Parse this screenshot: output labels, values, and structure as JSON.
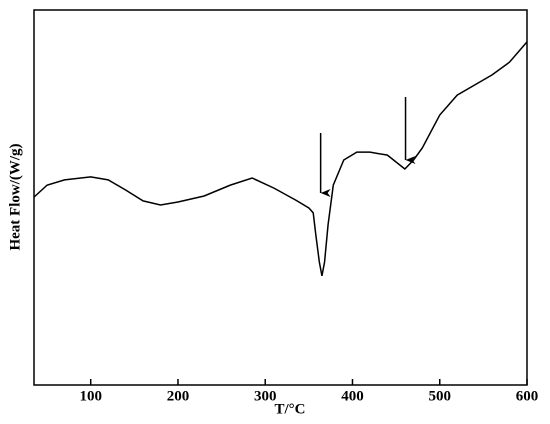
{
  "chart_data": {
    "type": "line",
    "x_label": "T/°C",
    "y_label": "Heat Flow/(W/g)",
    "x": [
      35,
      50,
      70,
      100,
      120,
      140,
      160,
      180,
      200,
      230,
      260,
      285,
      310,
      335,
      350,
      355,
      358,
      362,
      365,
      368,
      372,
      378,
      390,
      405,
      420,
      440,
      460,
      470,
      480,
      500,
      520,
      540,
      560,
      580,
      600
    ],
    "series": [
      {
        "color": "#000000",
        "values": [
          50.1,
          53.3,
          54.7,
          55.5,
          54.7,
          52,
          49.1,
          48,
          48.8,
          50.4,
          53.3,
          55.2,
          52.5,
          49.3,
          47.2,
          45.9,
          40,
          32.8,
          29.1,
          32.8,
          42.7,
          53.3,
          60,
          62.1,
          62.1,
          61.3,
          57.6,
          60,
          63.2,
          72,
          77.3,
          80,
          82.7,
          86.1,
          91.5
        ]
      }
    ],
    "arrows": [
      {
        "x": 363.5,
        "from": 67.2,
        "to": 51.2
      },
      {
        "x": 460.8,
        "from": 76.8,
        "to": 60
      }
    ],
    "xlim": [
      35,
      600
    ],
    "ylim": [
      0,
      100
    ],
    "xticks": [
      100,
      200,
      300,
      400,
      500,
      600
    ]
  }
}
